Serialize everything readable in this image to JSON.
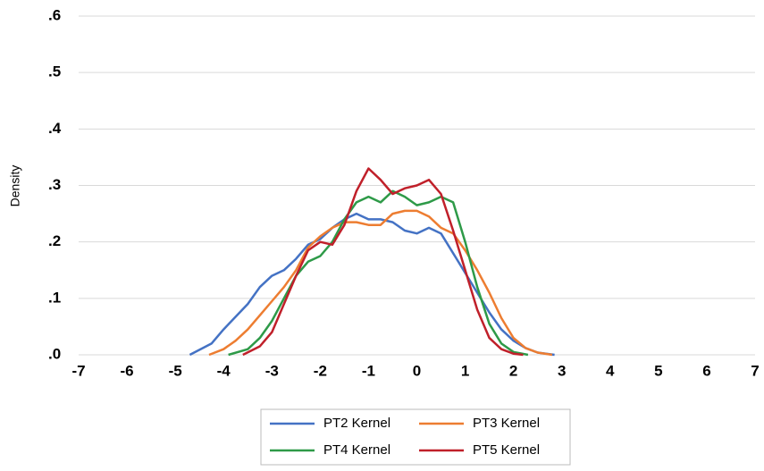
{
  "chart_data": {
    "type": "line",
    "y_label": "Density",
    "xlim": [
      -7,
      7
    ],
    "xticks": [
      -7,
      -6,
      -5,
      -4,
      -3,
      -2,
      -1,
      0,
      1,
      2,
      3,
      4,
      5,
      6,
      7
    ],
    "ylim": [
      0,
      0.6
    ],
    "yticks": [
      {
        "value": 0,
        "label": ".0"
      },
      {
        "value": 0.1,
        "label": ".1"
      },
      {
        "value": 0.2,
        "label": ".2"
      },
      {
        "value": 0.3,
        "label": ".3"
      },
      {
        "value": 0.4,
        "label": ".4"
      },
      {
        "value": 0.5,
        "label": ".5"
      },
      {
        "value": 0.6,
        "label": ".6"
      }
    ],
    "grid": true,
    "series": [
      {
        "name": "PT2 Kernel",
        "color": "#4472c4",
        "x": [
          -4.7,
          -4.25,
          -4.0,
          -3.5,
          -3.25,
          -3.0,
          -2.75,
          -2.5,
          -2.25,
          -2.0,
          -1.75,
          -1.5,
          -1.25,
          -1.0,
          -0.75,
          -0.5,
          -0.25,
          0,
          0.25,
          0.5,
          0.75,
          1.0,
          1.25,
          1.5,
          1.75,
          2.0,
          2.25,
          2.5,
          2.85
        ],
        "values": [
          0,
          0.02,
          0.045,
          0.09,
          0.12,
          0.14,
          0.15,
          0.17,
          0.195,
          0.205,
          0.225,
          0.24,
          0.25,
          0.24,
          0.24,
          0.235,
          0.22,
          0.215,
          0.225,
          0.215,
          0.18,
          0.145,
          0.11,
          0.075,
          0.045,
          0.025,
          0.012,
          0.004,
          0
        ]
      },
      {
        "name": "PT3 Kernel",
        "color": "#ed7d31",
        "x": [
          -4.3,
          -4.0,
          -3.75,
          -3.5,
          -3.25,
          -3.0,
          -2.75,
          -2.5,
          -2.25,
          -2.0,
          -1.75,
          -1.5,
          -1.25,
          -1.0,
          -0.75,
          -0.5,
          -0.25,
          0,
          0.25,
          0.5,
          0.75,
          1.0,
          1.25,
          1.5,
          1.75,
          2.0,
          2.25,
          2.5,
          2.8
        ],
        "values": [
          0,
          0.01,
          0.025,
          0.045,
          0.07,
          0.095,
          0.12,
          0.15,
          0.19,
          0.21,
          0.225,
          0.235,
          0.235,
          0.23,
          0.23,
          0.25,
          0.255,
          0.255,
          0.245,
          0.225,
          0.215,
          0.185,
          0.15,
          0.11,
          0.065,
          0.03,
          0.012,
          0.004,
          0
        ]
      },
      {
        "name": "PT4 Kernel",
        "color": "#2e9a48",
        "x": [
          -3.9,
          -3.5,
          -3.25,
          -3.0,
          -2.75,
          -2.5,
          -2.25,
          -2.0,
          -1.75,
          -1.5,
          -1.25,
          -1.0,
          -0.75,
          -0.5,
          -0.25,
          0,
          0.25,
          0.5,
          0.75,
          1.0,
          1.25,
          1.5,
          1.75,
          2.0,
          2.3
        ],
        "values": [
          0,
          0.01,
          0.03,
          0.06,
          0.1,
          0.14,
          0.165,
          0.175,
          0.2,
          0.24,
          0.27,
          0.28,
          0.27,
          0.29,
          0.28,
          0.265,
          0.27,
          0.28,
          0.27,
          0.2,
          0.12,
          0.055,
          0.02,
          0.005,
          0
        ]
      },
      {
        "name": "PT5 Kernel",
        "color": "#c0202a",
        "x": [
          -3.6,
          -3.25,
          -3.0,
          -2.75,
          -2.5,
          -2.25,
          -2.0,
          -1.75,
          -1.5,
          -1.25,
          -1.0,
          -0.75,
          -0.5,
          -0.25,
          0,
          0.25,
          0.5,
          0.75,
          1.0,
          1.25,
          1.5,
          1.75,
          2.0,
          2.2
        ],
        "values": [
          0,
          0.015,
          0.04,
          0.09,
          0.14,
          0.185,
          0.2,
          0.195,
          0.23,
          0.29,
          0.33,
          0.31,
          0.285,
          0.295,
          0.3,
          0.31,
          0.285,
          0.22,
          0.15,
          0.08,
          0.03,
          0.01,
          0.002,
          0
        ]
      }
    ]
  }
}
